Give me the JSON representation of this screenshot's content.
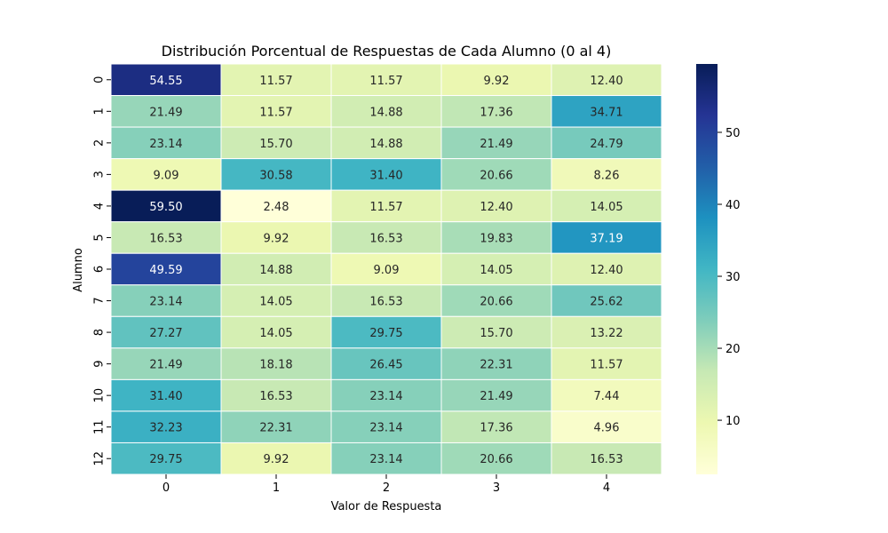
{
  "chart_data": {
    "type": "heatmap",
    "title": "Distribución Porcentual de Respuestas de Cada Alumno (0 al 4)",
    "xlabel": "Valor de Respuesta",
    "ylabel": "Alumno",
    "x_categories": [
      "0",
      "1",
      "2",
      "3",
      "4"
    ],
    "y_categories": [
      "0",
      "1",
      "2",
      "3",
      "4",
      "5",
      "6",
      "7",
      "8",
      "9",
      "10",
      "11",
      "12"
    ],
    "values": [
      [
        54.55,
        11.57,
        11.57,
        9.92,
        12.4
      ],
      [
        21.49,
        11.57,
        14.88,
        17.36,
        34.71
      ],
      [
        23.14,
        15.7,
        14.88,
        21.49,
        24.79
      ],
      [
        9.09,
        30.58,
        31.4,
        20.66,
        8.26
      ],
      [
        59.5,
        2.48,
        11.57,
        12.4,
        14.05
      ],
      [
        16.53,
        9.92,
        16.53,
        19.83,
        37.19
      ],
      [
        49.59,
        14.88,
        9.09,
        14.05,
        12.4
      ],
      [
        23.14,
        14.05,
        16.53,
        20.66,
        25.62
      ],
      [
        27.27,
        14.05,
        29.75,
        15.7,
        13.22
      ],
      [
        21.49,
        18.18,
        26.45,
        22.31,
        11.57
      ],
      [
        31.4,
        16.53,
        23.14,
        21.49,
        7.44
      ],
      [
        32.23,
        22.31,
        23.14,
        17.36,
        4.96
      ],
      [
        29.75,
        9.92,
        23.14,
        20.66,
        16.53
      ]
    ],
    "value_format": "0.00",
    "colormap": "YlGnBu",
    "color_range": [
      2.48,
      59.5
    ],
    "colorbar_ticks": [
      10,
      20,
      30,
      40,
      50
    ],
    "grid": true,
    "legend": "colorbar-right"
  },
  "colors": {
    "colormap_stops": [
      "#ffffd9",
      "#edf8b1",
      "#c7e9b4",
      "#7fcdbb",
      "#41b6c4",
      "#1d91c0",
      "#225ea8",
      "#253494",
      "#081d58"
    ],
    "text_dark": "#262626",
    "text_light": "#ffffff",
    "axis": "#000000",
    "cell_border": "#ffffff"
  }
}
